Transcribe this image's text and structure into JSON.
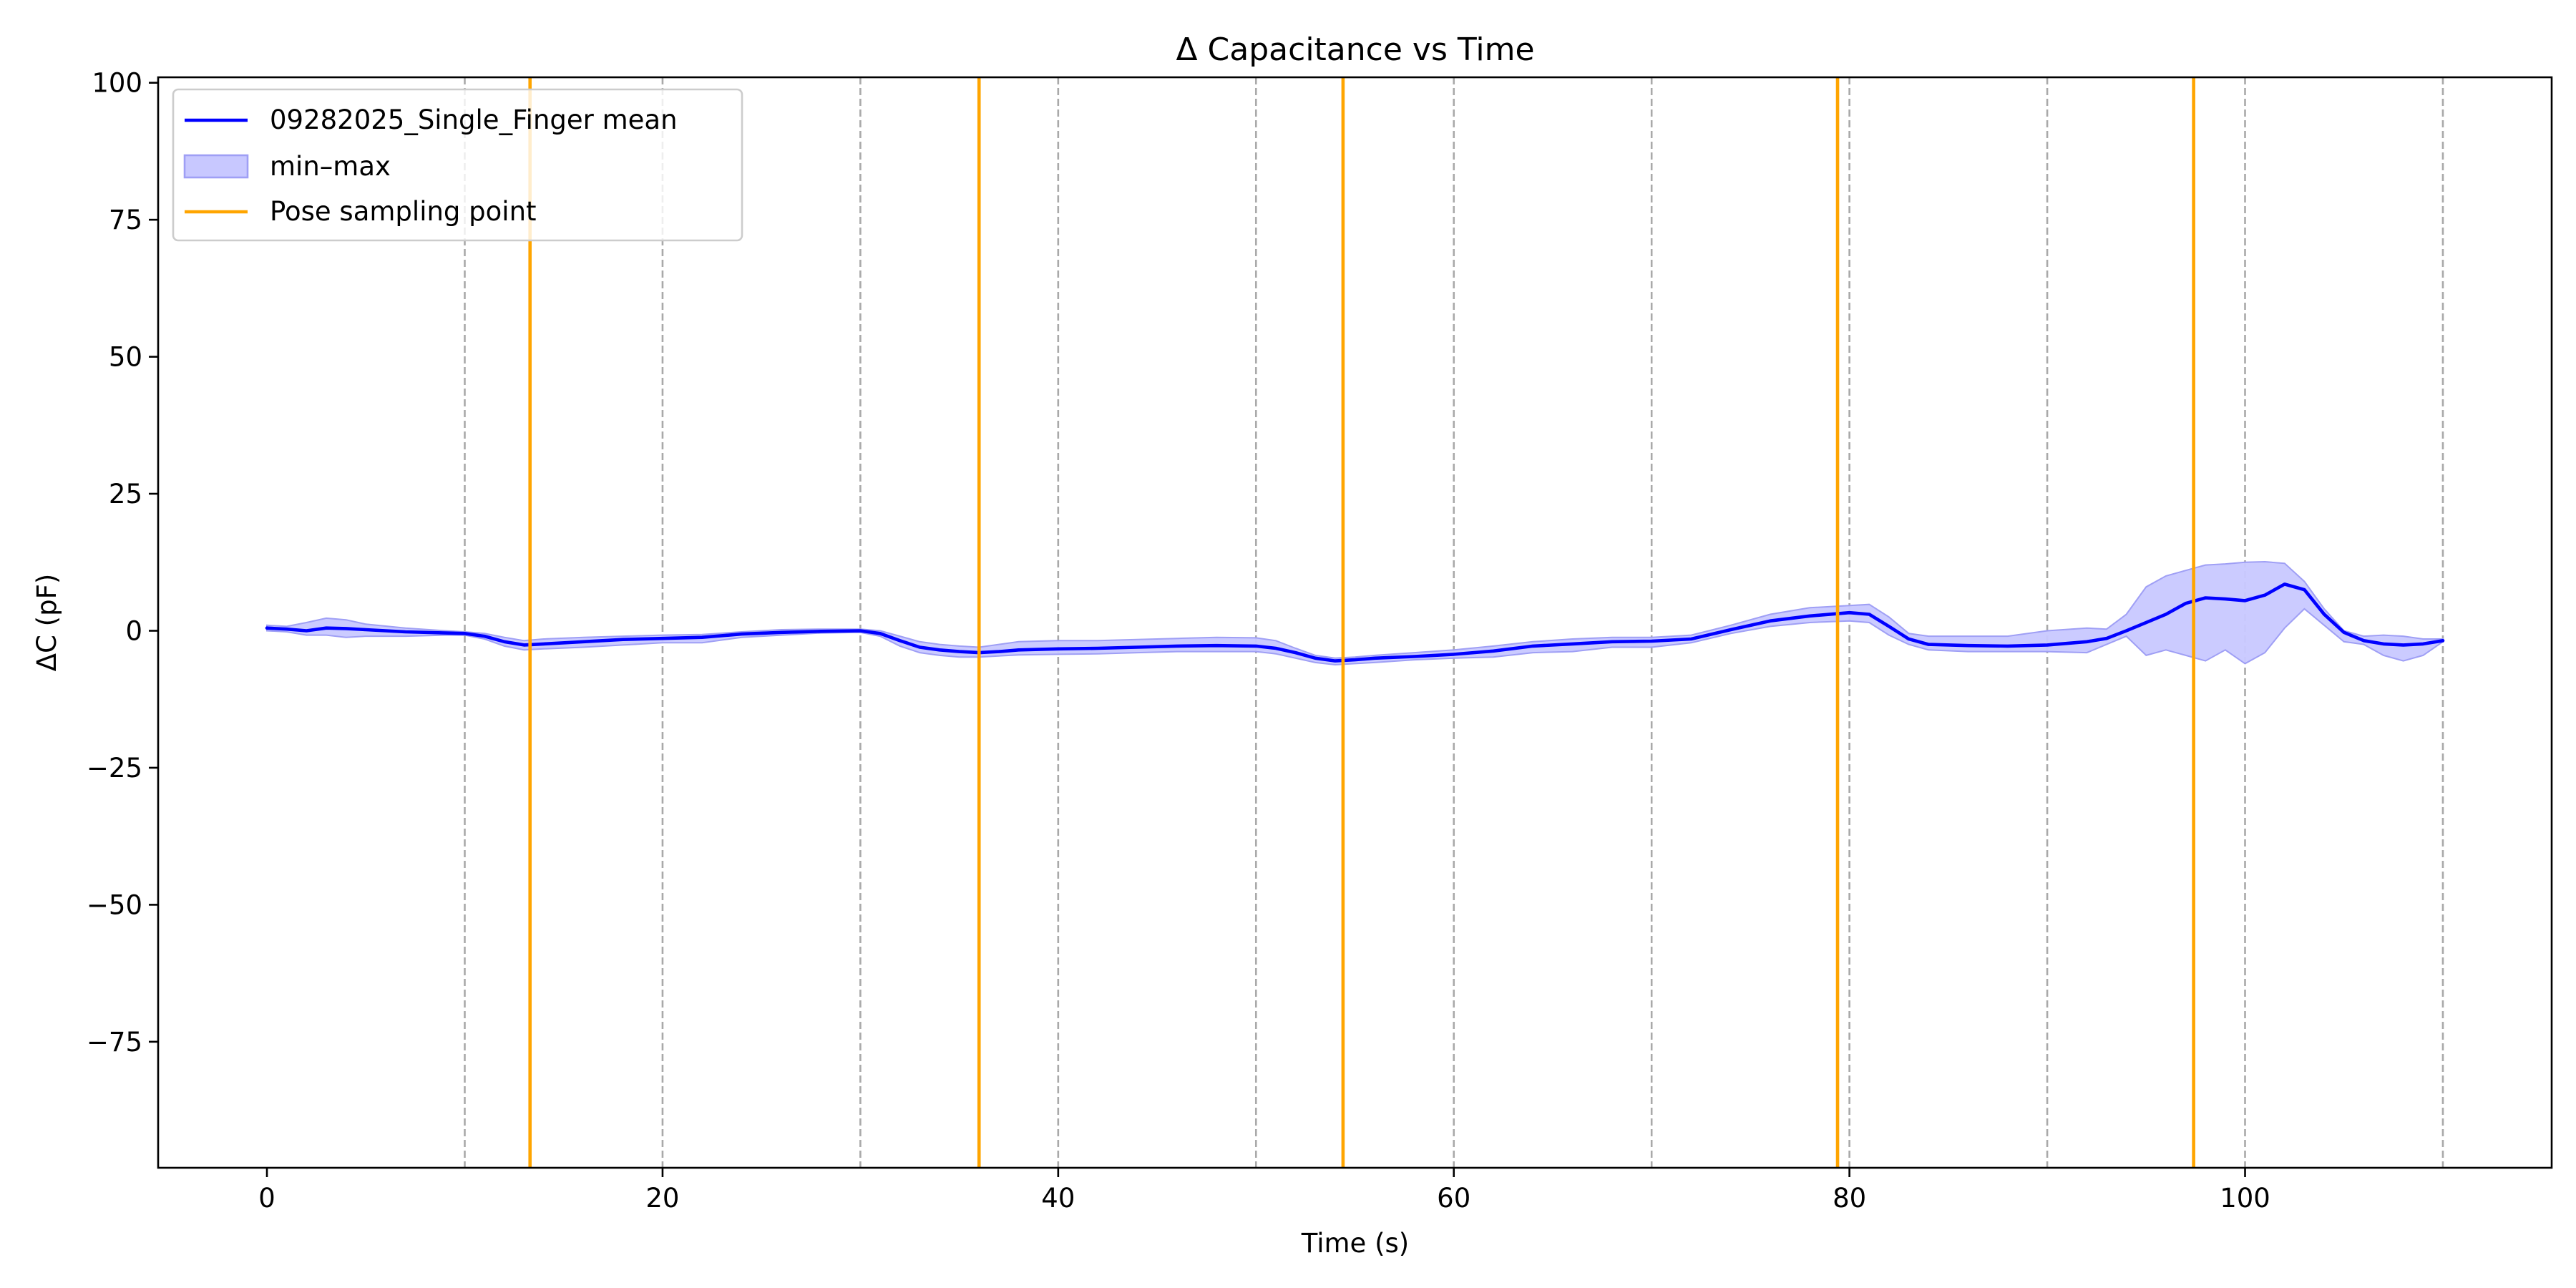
{
  "chart_data": {
    "type": "line",
    "title": "Δ Capacitance vs Time",
    "xlabel": "Time (s)",
    "ylabel": "ΔC (pF)",
    "xlim": [
      -5.5,
      115.5
    ],
    "ylim": [
      -98,
      101
    ],
    "x_ticks": [
      0,
      20,
      40,
      60,
      80,
      100
    ],
    "y_ticks": [
      -75,
      -50,
      -25,
      0,
      25,
      50,
      75,
      100
    ],
    "grid": false,
    "legend_position": "top-left",
    "colors": {
      "mean": "#0000ff",
      "band_fill": "#c8c8ff",
      "band_edge": "#9f9ff5",
      "pose": "#ffa500",
      "segment": "#a9a9a9"
    },
    "segment_boundaries": [
      10,
      20,
      30,
      40,
      50,
      60,
      70,
      80,
      90,
      100,
      110
    ],
    "pose_sampling_points": [
      13.3,
      36,
      54.4,
      79.4,
      97.4
    ],
    "series": [
      {
        "name": "09282025_Single_Finger mean",
        "kind": "line",
        "x": [
          0,
          1,
          2,
          3,
          4,
          5,
          7,
          9,
          10,
          11,
          12,
          13,
          14,
          16,
          18,
          20,
          22,
          24,
          26,
          28,
          30,
          31,
          32,
          33,
          34,
          35,
          36,
          37,
          38,
          40,
          42,
          44,
          46,
          48,
          50,
          51,
          52,
          53,
          54,
          55,
          56,
          58,
          60,
          62,
          64,
          66,
          68,
          70,
          72,
          74,
          76,
          78,
          80,
          81,
          82,
          83,
          84,
          86,
          88,
          90,
          92,
          93,
          94,
          95,
          96,
          97,
          98,
          99,
          100,
          101,
          102,
          103,
          104,
          105,
          106,
          107,
          108,
          109,
          110
        ],
        "values": [
          0.5,
          0.3,
          0.0,
          0.5,
          0.4,
          0.2,
          -0.2,
          -0.4,
          -0.5,
          -1.0,
          -2.0,
          -2.6,
          -2.4,
          -2.0,
          -1.6,
          -1.4,
          -1.2,
          -0.6,
          -0.3,
          -0.1,
          0.0,
          -0.5,
          -1.8,
          -3.0,
          -3.5,
          -3.8,
          -4.0,
          -3.8,
          -3.5,
          -3.3,
          -3.2,
          -3.0,
          -2.8,
          -2.7,
          -2.8,
          -3.2,
          -4.0,
          -5.0,
          -5.5,
          -5.3,
          -5.0,
          -4.7,
          -4.3,
          -3.7,
          -2.8,
          -2.4,
          -2.0,
          -1.9,
          -1.5,
          0.2,
          1.8,
          2.7,
          3.3,
          3.0,
          0.8,
          -1.5,
          -2.5,
          -2.7,
          -2.8,
          -2.6,
          -2.0,
          -1.4,
          0.0,
          1.5,
          3.0,
          5.0,
          6.0,
          5.8,
          5.5,
          6.5,
          8.5,
          7.5,
          3.0,
          -0.3,
          -1.8,
          -2.4,
          -2.6,
          -2.4,
          -1.8
        ]
      },
      {
        "name": "min–max",
        "kind": "band",
        "x": [
          0,
          1,
          2,
          3,
          4,
          5,
          7,
          9,
          10,
          11,
          12,
          13,
          14,
          16,
          18,
          20,
          22,
          24,
          26,
          28,
          30,
          31,
          32,
          33,
          34,
          35,
          36,
          37,
          38,
          40,
          42,
          44,
          46,
          48,
          50,
          51,
          52,
          53,
          54,
          55,
          56,
          58,
          60,
          62,
          64,
          66,
          68,
          70,
          72,
          74,
          76,
          78,
          80,
          81,
          82,
          83,
          84,
          86,
          88,
          90,
          92,
          93,
          94,
          95,
          96,
          97,
          98,
          99,
          100,
          101,
          102,
          103,
          104,
          105,
          106,
          107,
          108,
          109,
          110
        ],
        "upper": [
          1.0,
          0.8,
          1.5,
          2.3,
          2.0,
          1.2,
          0.5,
          0.0,
          -0.2,
          -0.5,
          -1.2,
          -1.8,
          -1.5,
          -1.2,
          -1.0,
          -0.8,
          -0.7,
          -0.2,
          0.2,
          0.3,
          0.3,
          0.0,
          -1.0,
          -2.0,
          -2.5,
          -2.8,
          -3.0,
          -2.5,
          -2.0,
          -1.8,
          -1.8,
          -1.6,
          -1.4,
          -1.2,
          -1.3,
          -1.8,
          -3.2,
          -4.5,
          -5.0,
          -4.8,
          -4.5,
          -4.0,
          -3.5,
          -2.8,
          -2.0,
          -1.5,
          -1.2,
          -1.2,
          -0.8,
          1.0,
          3.0,
          4.2,
          4.6,
          4.8,
          2.5,
          -0.5,
          -1.0,
          -1.0,
          -1.0,
          0.0,
          0.5,
          0.3,
          3.0,
          8.0,
          10.0,
          11.0,
          12.0,
          12.2,
          12.5,
          12.6,
          12.3,
          9.0,
          4.0,
          0.0,
          -1.0,
          -0.8,
          -1.0,
          -1.5,
          -1.5
        ],
        "lower": [
          0.0,
          -0.2,
          -0.8,
          -0.8,
          -1.2,
          -1.0,
          -1.0,
          -0.8,
          -0.8,
          -1.5,
          -2.8,
          -3.5,
          -3.3,
          -3.0,
          -2.6,
          -2.2,
          -2.2,
          -1.2,
          -0.8,
          -0.4,
          -0.3,
          -1.0,
          -2.8,
          -4.0,
          -4.5,
          -4.8,
          -4.8,
          -4.6,
          -4.4,
          -4.3,
          -4.2,
          -4.0,
          -3.8,
          -3.8,
          -3.8,
          -4.2,
          -5.0,
          -5.8,
          -6.2,
          -6.0,
          -5.8,
          -5.3,
          -5.0,
          -4.8,
          -4.0,
          -3.8,
          -3.0,
          -3.0,
          -2.2,
          -0.5,
          0.8,
          1.5,
          1.8,
          1.5,
          -0.8,
          -2.5,
          -3.5,
          -3.8,
          -3.8,
          -3.8,
          -4.0,
          -2.5,
          -1.0,
          -4.5,
          -3.5,
          -4.5,
          -5.5,
          -3.5,
          -6.0,
          -4.0,
          0.5,
          4.0,
          1.0,
          -2.0,
          -2.5,
          -4.5,
          -5.5,
          -4.5,
          -2.0
        ]
      },
      {
        "name": "Pose sampling point",
        "kind": "vline"
      }
    ]
  }
}
